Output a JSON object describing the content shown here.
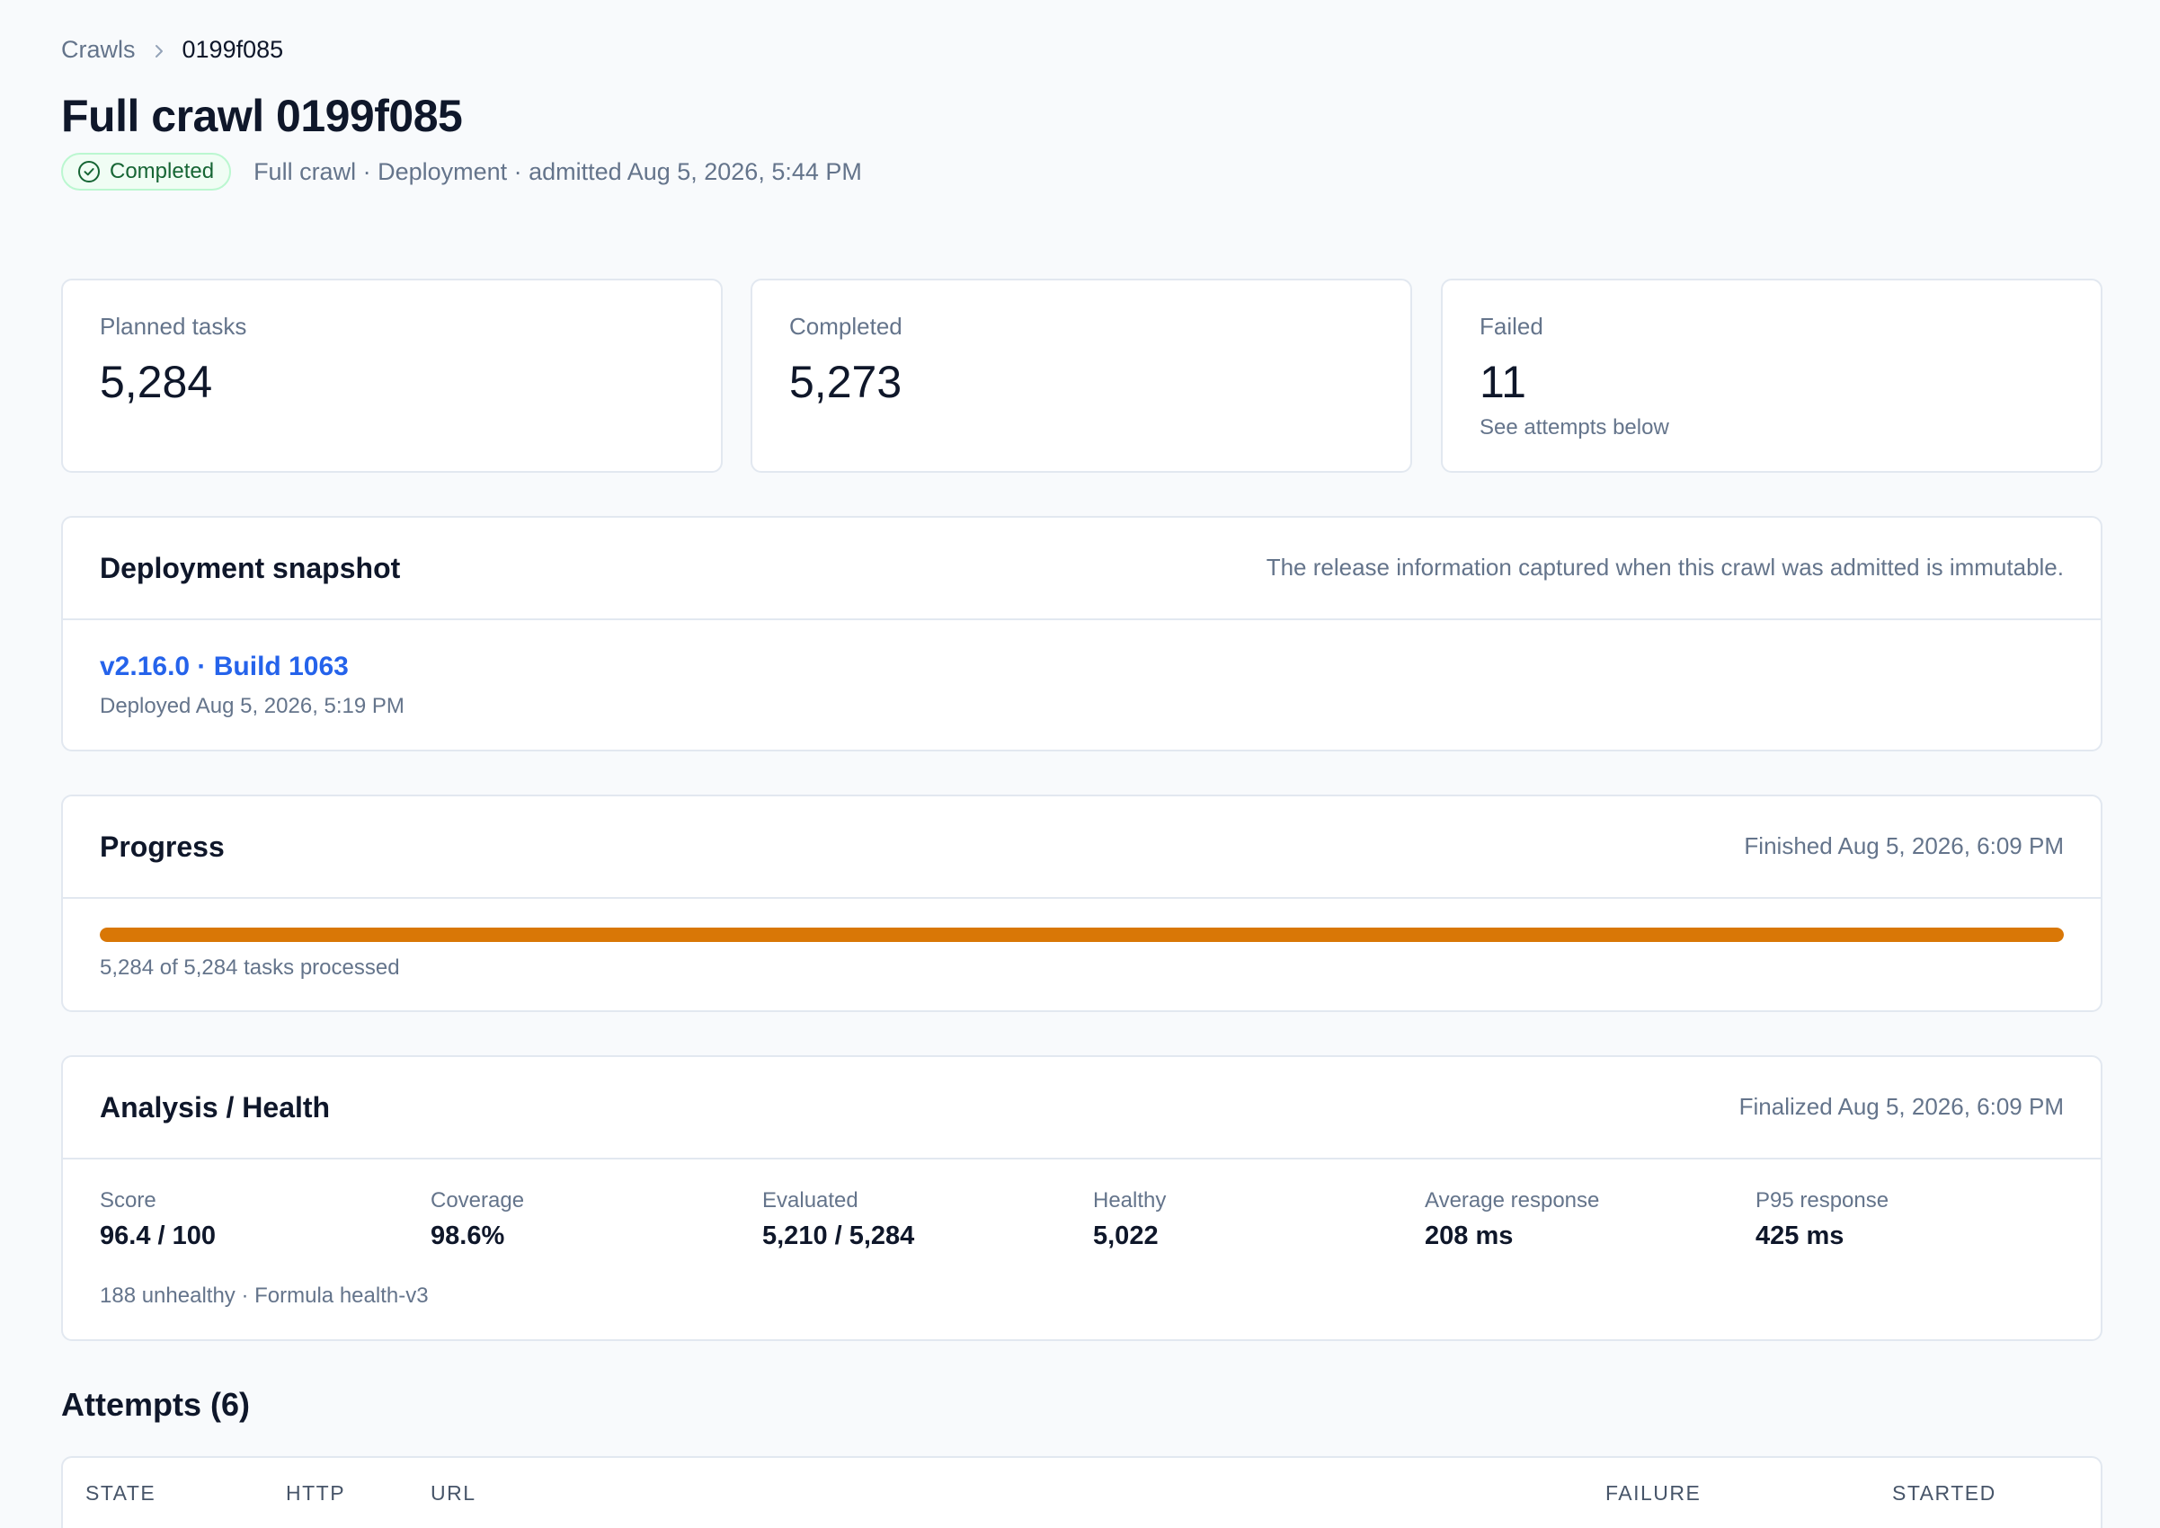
{
  "breadcrumb": {
    "parent": "Crawls",
    "current": "0199f085"
  },
  "header": {
    "title": "Full crawl 0199f085",
    "status": "Completed",
    "meta": "Full crawl · Deployment · admitted Aug 5, 2026, 5:44 PM"
  },
  "stats": [
    {
      "label": "Planned tasks",
      "value": "5,284",
      "note": ""
    },
    {
      "label": "Completed",
      "value": "5,273",
      "note": ""
    },
    {
      "label": "Failed",
      "value": "11",
      "note": "See attempts below"
    }
  ],
  "deployment": {
    "title": "Deployment snapshot",
    "description": "The release information captured when this crawl was admitted is immutable.",
    "release": "v2.16.0 · Build 1063",
    "deployed": "Deployed Aug 5, 2026, 5:19 PM"
  },
  "progress": {
    "title": "Progress",
    "finished": "Finished Aug 5, 2026, 6:09 PM",
    "processed": 5284,
    "total": 5284,
    "summary": "5,284 of 5,284 tasks processed",
    "color": "#d97706"
  },
  "health": {
    "title": "Analysis / Health",
    "finalized": "Finalized Aug 5, 2026, 6:09 PM",
    "metrics": [
      {
        "label": "Score",
        "value": "96.4 / 100"
      },
      {
        "label": "Coverage",
        "value": "98.6%"
      },
      {
        "label": "Evaluated",
        "value": "5,210 / 5,284"
      },
      {
        "label": "Healthy",
        "value": "5,022"
      },
      {
        "label": "Average response",
        "value": "208 ms"
      },
      {
        "label": "P95 response",
        "value": "425 ms"
      }
    ],
    "footer": "188 unhealthy · Formula health-v3"
  },
  "attempts": {
    "title": "Attempts (6)",
    "columns": [
      "STATE",
      "HTTP",
      "URL",
      "FAILURE",
      "STARTED"
    ]
  },
  "icons": {
    "status": "check-circle-icon",
    "separator": "chevron-right-icon"
  }
}
